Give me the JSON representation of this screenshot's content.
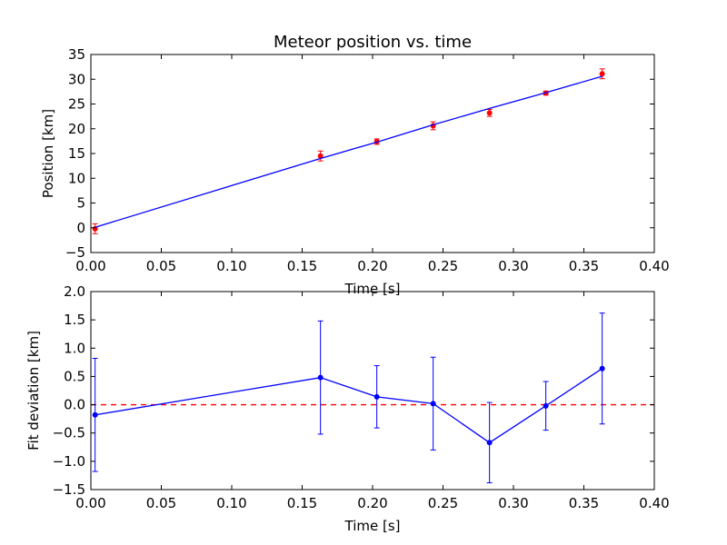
{
  "chart_data": [
    {
      "type": "scatter",
      "title": "Meteor position vs. time",
      "xlabel": "Time [s]",
      "ylabel": "Position [km]",
      "xlim": [
        0.0,
        0.4
      ],
      "ylim": [
        -5,
        35
      ],
      "x_ticks": [
        "0.00",
        "0.05",
        "0.10",
        "0.15",
        "0.20",
        "0.25",
        "0.30",
        "0.35",
        "0.40"
      ],
      "y_ticks": [
        "−5",
        "0",
        "5",
        "10",
        "15",
        "20",
        "25",
        "30",
        "35"
      ],
      "x_tick_values": [
        0.0,
        0.05,
        0.1,
        0.15,
        0.2,
        0.25,
        0.3,
        0.35,
        0.4
      ],
      "y_tick_values": [
        -5,
        0,
        5,
        10,
        15,
        20,
        25,
        30,
        35
      ],
      "grid": false,
      "series": [
        {
          "kind": "errorbar-points",
          "color": "#ff0000",
          "x": [
            0.003,
            0.163,
            0.203,
            0.243,
            0.283,
            0.323,
            0.363
          ],
          "y": [
            -0.2,
            14.5,
            17.4,
            20.6,
            23.2,
            27.2,
            31.1
          ],
          "yerr": [
            1.0,
            1.0,
            0.55,
            0.8,
            0.7,
            0.4,
            1.0
          ]
        },
        {
          "kind": "fit-line",
          "color": "#0000ff",
          "x": [
            0.003,
            0.163,
            0.203,
            0.243,
            0.283,
            0.323,
            0.363
          ],
          "y": [
            0.1,
            14.0,
            17.3,
            20.8,
            24.1,
            27.3,
            30.6
          ]
        }
      ]
    },
    {
      "type": "line",
      "xlabel": "Time [s]",
      "ylabel": "Fit deviation [km]",
      "xlim": [
        0.0,
        0.4
      ],
      "ylim": [
        -1.5,
        2.0
      ],
      "x_ticks": [
        "0.00",
        "0.05",
        "0.10",
        "0.15",
        "0.20",
        "0.25",
        "0.30",
        "0.35",
        "0.40"
      ],
      "y_ticks": [
        "−1.5",
        "−1.0",
        "−0.5",
        "0.0",
        "0.5",
        "1.0",
        "1.5",
        "2.0"
      ],
      "x_tick_values": [
        0.0,
        0.05,
        0.1,
        0.15,
        0.2,
        0.25,
        0.3,
        0.35,
        0.4
      ],
      "y_tick_values": [
        -1.5,
        -1.0,
        -0.5,
        0.0,
        0.5,
        1.0,
        1.5,
        2.0
      ],
      "grid": false,
      "zero_line": {
        "y": 0.0,
        "color": "#ff0000",
        "style": "dashed"
      },
      "series": [
        {
          "kind": "errorbar-line",
          "color": "#0000ff",
          "x": [
            0.003,
            0.163,
            0.203,
            0.243,
            0.283,
            0.323,
            0.363
          ],
          "y": [
            -0.18,
            0.48,
            0.14,
            0.02,
            -0.67,
            -0.02,
            0.64
          ],
          "yerr": [
            1.0,
            1.0,
            0.55,
            0.82,
            0.71,
            0.43,
            0.98
          ]
        }
      ]
    }
  ]
}
